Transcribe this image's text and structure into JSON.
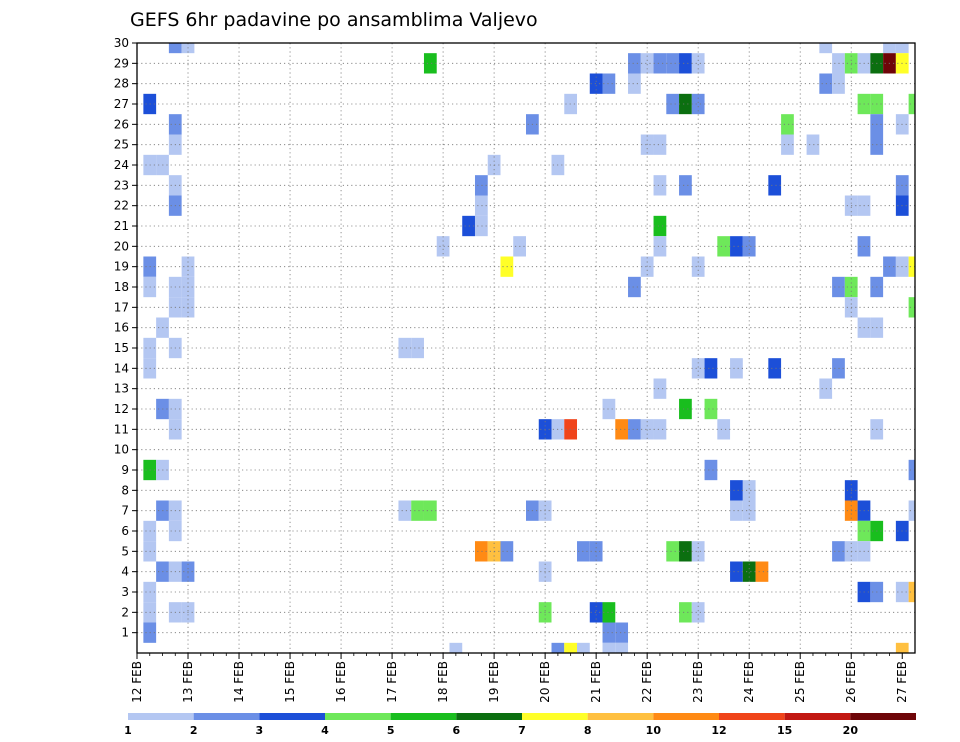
{
  "chart_data": {
    "type": "heatmap",
    "title": "GEFS 6hr padavine po ansamblima Valjevo",
    "xlabel": "",
    "ylabel": "",
    "x_tick_labels": [
      "12 FEB",
      "13 FEB",
      "14 FEB",
      "15 FEB",
      "16 FEB",
      "17 FEB",
      "18 FEB",
      "19 FEB",
      "20 FEB",
      "21 FEB",
      "22 FEB",
      "23 FEB",
      "24 FEB",
      "25 FEB",
      "26 FEB",
      "27 FEB"
    ],
    "y_tick_labels": [
      "1",
      "2",
      "3",
      "4",
      "5",
      "6",
      "7",
      "8",
      "9",
      "10",
      "11",
      "12",
      "13",
      "14",
      "15",
      "16",
      "17",
      "18",
      "19",
      "20",
      "21",
      "22",
      "23",
      "24",
      "25",
      "26",
      "27",
      "28",
      "29",
      "30"
    ],
    "xlim_steps": [
      0,
      61
    ],
    "ylim": [
      0,
      30
    ],
    "grid": true,
    "colorbar": {
      "labels": [
        "1",
        "2",
        "3",
        "4",
        "5",
        "6",
        "7",
        "8",
        "10",
        "12",
        "15",
        "20"
      ],
      "colors": [
        "#b4c7f2",
        "#6b8fe6",
        "#1c4fd8",
        "#6ee85a",
        "#19be1e",
        "#0b6f10",
        "#ffff28",
        "#ffc040",
        "#ff8a14",
        "#f0441a",
        "#c21812",
        "#6e0508"
      ]
    },
    "cells": [
      {
        "step": 3,
        "member": 30,
        "cls": 1
      },
      {
        "step": 4,
        "member": 30,
        "cls": 0
      },
      {
        "step": 54,
        "member": 30,
        "cls": 0
      },
      {
        "step": 59,
        "member": 30,
        "cls": 0
      },
      {
        "step": 60,
        "member": 30,
        "cls": 0
      },
      {
        "step": 23,
        "member": 29,
        "cls": 4
      },
      {
        "step": 39,
        "member": 29,
        "cls": 1
      },
      {
        "step": 40,
        "member": 29,
        "cls": 0
      },
      {
        "step": 41,
        "member": 29,
        "cls": 1
      },
      {
        "step": 42,
        "member": 29,
        "cls": 1
      },
      {
        "step": 43,
        "member": 29,
        "cls": 2
      },
      {
        "step": 44,
        "member": 29,
        "cls": 0
      },
      {
        "step": 55,
        "member": 29,
        "cls": 0
      },
      {
        "step": 56,
        "member": 29,
        "cls": 3
      },
      {
        "step": 57,
        "member": 29,
        "cls": 0
      },
      {
        "step": 58,
        "member": 29,
        "cls": 5
      },
      {
        "step": 59,
        "member": 29,
        "cls": 11
      },
      {
        "step": 60,
        "member": 29,
        "cls": 6
      },
      {
        "step": 36,
        "member": 28,
        "cls": 2
      },
      {
        "step": 37,
        "member": 28,
        "cls": 1
      },
      {
        "step": 39,
        "member": 28,
        "cls": 0
      },
      {
        "step": 54,
        "member": 28,
        "cls": 1
      },
      {
        "step": 55,
        "member": 28,
        "cls": 0
      },
      {
        "step": 1,
        "member": 27,
        "cls": 2
      },
      {
        "step": 34,
        "member": 27,
        "cls": 0
      },
      {
        "step": 42,
        "member": 27,
        "cls": 1
      },
      {
        "step": 43,
        "member": 27,
        "cls": 5
      },
      {
        "step": 44,
        "member": 27,
        "cls": 1
      },
      {
        "step": 57,
        "member": 27,
        "cls": 3
      },
      {
        "step": 58,
        "member": 27,
        "cls": 3
      },
      {
        "step": 61,
        "member": 27,
        "cls": 3
      },
      {
        "step": 3,
        "member": 26,
        "cls": 1
      },
      {
        "step": 31,
        "member": 26,
        "cls": 1
      },
      {
        "step": 51,
        "member": 26,
        "cls": 3
      },
      {
        "step": 58,
        "member": 26,
        "cls": 1
      },
      {
        "step": 60,
        "member": 26,
        "cls": 0
      },
      {
        "step": 3,
        "member": 25,
        "cls": 0
      },
      {
        "step": 40,
        "member": 25,
        "cls": 0
      },
      {
        "step": 41,
        "member": 25,
        "cls": 0
      },
      {
        "step": 51,
        "member": 25,
        "cls": 0
      },
      {
        "step": 53,
        "member": 25,
        "cls": 0
      },
      {
        "step": 58,
        "member": 25,
        "cls": 1
      },
      {
        "step": 1,
        "member": 24,
        "cls": 0
      },
      {
        "step": 2,
        "member": 24,
        "cls": 0
      },
      {
        "step": 28,
        "member": 24,
        "cls": 0
      },
      {
        "step": 33,
        "member": 24,
        "cls": 0
      },
      {
        "step": 3,
        "member": 23,
        "cls": 0
      },
      {
        "step": 27,
        "member": 23,
        "cls": 1
      },
      {
        "step": 41,
        "member": 23,
        "cls": 0
      },
      {
        "step": 43,
        "member": 23,
        "cls": 1
      },
      {
        "step": 50,
        "member": 23,
        "cls": 2
      },
      {
        "step": 60,
        "member": 23,
        "cls": 1
      },
      {
        "step": 3,
        "member": 22,
        "cls": 1
      },
      {
        "step": 27,
        "member": 22,
        "cls": 0
      },
      {
        "step": 56,
        "member": 22,
        "cls": 0
      },
      {
        "step": 57,
        "member": 22,
        "cls": 0
      },
      {
        "step": 60,
        "member": 22,
        "cls": 2
      },
      {
        "step": 26,
        "member": 21,
        "cls": 2
      },
      {
        "step": 27,
        "member": 21,
        "cls": 0
      },
      {
        "step": 41,
        "member": 21,
        "cls": 4
      },
      {
        "step": 24,
        "member": 20,
        "cls": 0
      },
      {
        "step": 30,
        "member": 20,
        "cls": 0
      },
      {
        "step": 41,
        "member": 20,
        "cls": 0
      },
      {
        "step": 46,
        "member": 20,
        "cls": 3
      },
      {
        "step": 47,
        "member": 20,
        "cls": 2
      },
      {
        "step": 48,
        "member": 20,
        "cls": 1
      },
      {
        "step": 57,
        "member": 20,
        "cls": 1
      },
      {
        "step": 1,
        "member": 19,
        "cls": 1
      },
      {
        "step": 4,
        "member": 19,
        "cls": 0
      },
      {
        "step": 29,
        "member": 19,
        "cls": 6
      },
      {
        "step": 40,
        "member": 19,
        "cls": 0
      },
      {
        "step": 44,
        "member": 19,
        "cls": 0
      },
      {
        "step": 59,
        "member": 19,
        "cls": 1
      },
      {
        "step": 60,
        "member": 19,
        "cls": 0
      },
      {
        "step": 61,
        "member": 19,
        "cls": 6
      },
      {
        "step": 1,
        "member": 18,
        "cls": 0
      },
      {
        "step": 3,
        "member": 18,
        "cls": 0
      },
      {
        "step": 4,
        "member": 18,
        "cls": 0
      },
      {
        "step": 39,
        "member": 18,
        "cls": 1
      },
      {
        "step": 55,
        "member": 18,
        "cls": 1
      },
      {
        "step": 56,
        "member": 18,
        "cls": 3
      },
      {
        "step": 58,
        "member": 18,
        "cls": 1
      },
      {
        "step": 3,
        "member": 17,
        "cls": 0
      },
      {
        "step": 4,
        "member": 17,
        "cls": 0
      },
      {
        "step": 56,
        "member": 17,
        "cls": 0
      },
      {
        "step": 61,
        "member": 17,
        "cls": 3
      },
      {
        "step": 2,
        "member": 16,
        "cls": 0
      },
      {
        "step": 57,
        "member": 16,
        "cls": 0
      },
      {
        "step": 58,
        "member": 16,
        "cls": 0
      },
      {
        "step": 1,
        "member": 15,
        "cls": 0
      },
      {
        "step": 3,
        "member": 15,
        "cls": 0
      },
      {
        "step": 21,
        "member": 15,
        "cls": 0
      },
      {
        "step": 22,
        "member": 15,
        "cls": 0
      },
      {
        "step": 1,
        "member": 14,
        "cls": 0
      },
      {
        "step": 44,
        "member": 14,
        "cls": 0
      },
      {
        "step": 45,
        "member": 14,
        "cls": 2
      },
      {
        "step": 47,
        "member": 14,
        "cls": 0
      },
      {
        "step": 50,
        "member": 14,
        "cls": 2
      },
      {
        "step": 55,
        "member": 14,
        "cls": 1
      },
      {
        "step": 41,
        "member": 13,
        "cls": 0
      },
      {
        "step": 54,
        "member": 13,
        "cls": 0
      },
      {
        "step": 2,
        "member": 12,
        "cls": 1
      },
      {
        "step": 3,
        "member": 12,
        "cls": 0
      },
      {
        "step": 37,
        "member": 12,
        "cls": 0
      },
      {
        "step": 43,
        "member": 12,
        "cls": 4
      },
      {
        "step": 45,
        "member": 12,
        "cls": 3
      },
      {
        "step": 3,
        "member": 11,
        "cls": 0
      },
      {
        "step": 32,
        "member": 11,
        "cls": 2
      },
      {
        "step": 33,
        "member": 11,
        "cls": 0
      },
      {
        "step": 34,
        "member": 11,
        "cls": 9
      },
      {
        "step": 38,
        "member": 11,
        "cls": 8
      },
      {
        "step": 39,
        "member": 11,
        "cls": 1
      },
      {
        "step": 40,
        "member": 11,
        "cls": 0
      },
      {
        "step": 41,
        "member": 11,
        "cls": 0
      },
      {
        "step": 46,
        "member": 11,
        "cls": 0
      },
      {
        "step": 58,
        "member": 11,
        "cls": 0
      },
      {
        "step": 1,
        "member": 9,
        "cls": 4
      },
      {
        "step": 2,
        "member": 9,
        "cls": 0
      },
      {
        "step": 45,
        "member": 9,
        "cls": 1
      },
      {
        "step": 61,
        "member": 9,
        "cls": 1
      },
      {
        "step": 47,
        "member": 8,
        "cls": 2
      },
      {
        "step": 48,
        "member": 8,
        "cls": 0
      },
      {
        "step": 56,
        "member": 8,
        "cls": 2
      },
      {
        "step": 2,
        "member": 7,
        "cls": 1
      },
      {
        "step": 3,
        "member": 7,
        "cls": 0
      },
      {
        "step": 21,
        "member": 7,
        "cls": 0
      },
      {
        "step": 22,
        "member": 7,
        "cls": 3
      },
      {
        "step": 23,
        "member": 7,
        "cls": 3
      },
      {
        "step": 31,
        "member": 7,
        "cls": 1
      },
      {
        "step": 32,
        "member": 7,
        "cls": 0
      },
      {
        "step": 47,
        "member": 7,
        "cls": 0
      },
      {
        "step": 48,
        "member": 7,
        "cls": 0
      },
      {
        "step": 56,
        "member": 7,
        "cls": 8
      },
      {
        "step": 57,
        "member": 7,
        "cls": 2
      },
      {
        "step": 61,
        "member": 7,
        "cls": 0
      },
      {
        "step": 1,
        "member": 6,
        "cls": 0
      },
      {
        "step": 3,
        "member": 6,
        "cls": 0
      },
      {
        "step": 57,
        "member": 6,
        "cls": 3
      },
      {
        "step": 58,
        "member": 6,
        "cls": 4
      },
      {
        "step": 60,
        "member": 6,
        "cls": 2
      },
      {
        "step": 1,
        "member": 5,
        "cls": 0
      },
      {
        "step": 27,
        "member": 5,
        "cls": 8
      },
      {
        "step": 28,
        "member": 5,
        "cls": 7
      },
      {
        "step": 29,
        "member": 5,
        "cls": 1
      },
      {
        "step": 35,
        "member": 5,
        "cls": 1
      },
      {
        "step": 36,
        "member": 5,
        "cls": 1
      },
      {
        "step": 42,
        "member": 5,
        "cls": 3
      },
      {
        "step": 43,
        "member": 5,
        "cls": 5
      },
      {
        "step": 44,
        "member": 5,
        "cls": 0
      },
      {
        "step": 55,
        "member": 5,
        "cls": 1
      },
      {
        "step": 56,
        "member": 5,
        "cls": 0
      },
      {
        "step": 57,
        "member": 5,
        "cls": 0
      },
      {
        "step": 2,
        "member": 4,
        "cls": 1
      },
      {
        "step": 3,
        "member": 4,
        "cls": 0
      },
      {
        "step": 4,
        "member": 4,
        "cls": 1
      },
      {
        "step": 32,
        "member": 4,
        "cls": 0
      },
      {
        "step": 47,
        "member": 4,
        "cls": 2
      },
      {
        "step": 48,
        "member": 4,
        "cls": 5
      },
      {
        "step": 49,
        "member": 4,
        "cls": 8
      },
      {
        "step": 1,
        "member": 3,
        "cls": 0
      },
      {
        "step": 57,
        "member": 3,
        "cls": 2
      },
      {
        "step": 58,
        "member": 3,
        "cls": 1
      },
      {
        "step": 60,
        "member": 3,
        "cls": 0
      },
      {
        "step": 61,
        "member": 3,
        "cls": 7
      },
      {
        "step": 1,
        "member": 2,
        "cls": 0
      },
      {
        "step": 3,
        "member": 2,
        "cls": 0
      },
      {
        "step": 4,
        "member": 2,
        "cls": 0
      },
      {
        "step": 32,
        "member": 2,
        "cls": 3
      },
      {
        "step": 36,
        "member": 2,
        "cls": 2
      },
      {
        "step": 37,
        "member": 2,
        "cls": 4
      },
      {
        "step": 43,
        "member": 2,
        "cls": 3
      },
      {
        "step": 44,
        "member": 2,
        "cls": 0
      },
      {
        "step": 1,
        "member": 1,
        "cls": 1
      },
      {
        "step": 37,
        "member": 1,
        "cls": 1
      },
      {
        "step": 38,
        "member": 1,
        "cls": 1
      },
      {
        "step": 25,
        "member": 0,
        "cls": 0
      },
      {
        "step": 33,
        "member": 0,
        "cls": 1
      },
      {
        "step": 34,
        "member": 0,
        "cls": 6
      },
      {
        "step": 35,
        "member": 0,
        "cls": 0
      },
      {
        "step": 37,
        "member": 0,
        "cls": 0
      },
      {
        "step": 38,
        "member": 0,
        "cls": 0
      },
      {
        "step": 60,
        "member": 0,
        "cls": 7
      }
    ]
  }
}
